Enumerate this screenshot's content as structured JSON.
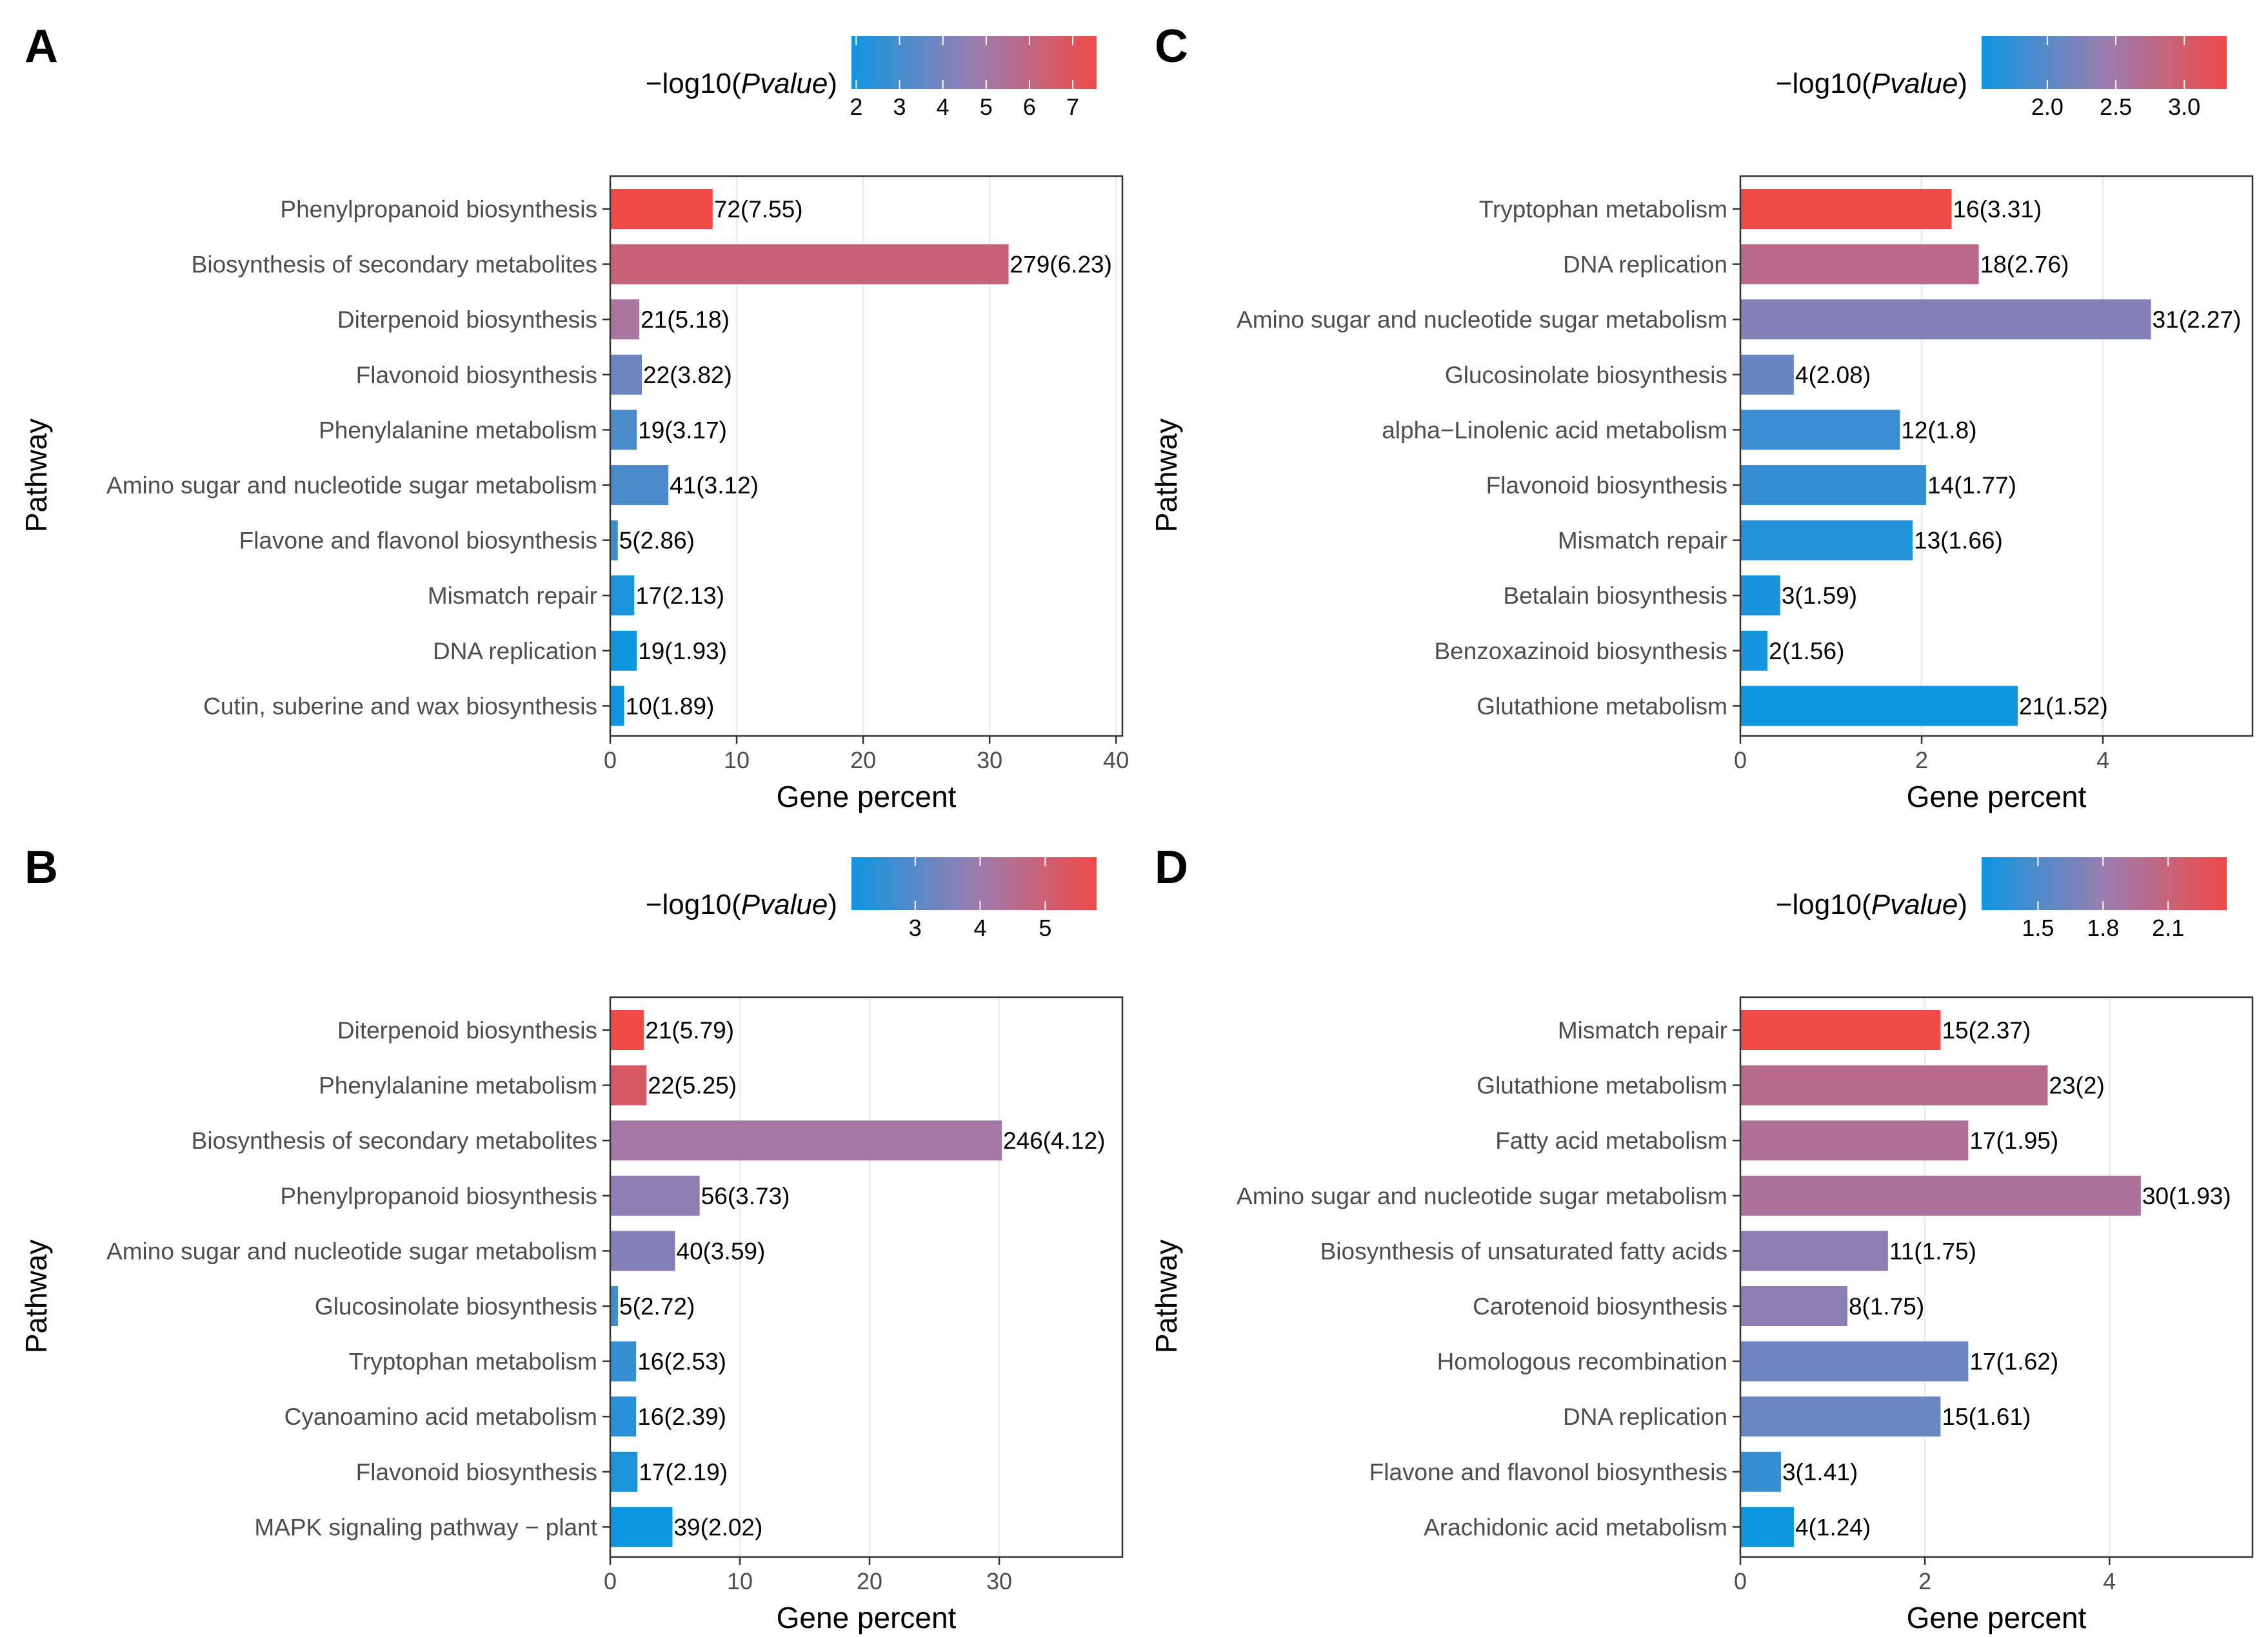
{
  "colors": {
    "low": "#0e96e0",
    "mid": "#9a7db0",
    "high": "#ef4a48"
  },
  "chart_data": [
    {
      "panel": "A",
      "type": "bar",
      "orientation": "horizontal",
      "ylabel": "Pathway",
      "xlabel": "Gene percent",
      "xlim": [
        0,
        40.5
      ],
      "xticks": [
        0,
        10,
        20,
        30,
        40
      ],
      "colorbar": {
        "title_prefix": "−log10(",
        "title_italic": "Pvalue",
        "title_suffix": ")",
        "range": [
          1.89,
          7.55
        ],
        "ticks": [
          2,
          3,
          4,
          5,
          6,
          7
        ]
      },
      "categories": [
        "Phenylpropanoid biosynthesis",
        "Biosynthesis of secondary metabolites",
        "Diterpenoid biosynthesis",
        "Flavonoid biosynthesis",
        "Phenylalanine metabolism",
        "Amino sugar and nucleotide sugar metabolism",
        "Flavone and flavonol biosynthesis",
        "Mismatch repair",
        "DNA replication",
        "Cutin, suberine and wax biosynthesis"
      ],
      "values": [
        8.1,
        31.5,
        2.3,
        2.5,
        2.1,
        4.6,
        0.6,
        1.9,
        2.1,
        1.1
      ],
      "neglog10p": [
        7.55,
        6.23,
        5.18,
        3.82,
        3.17,
        3.12,
        2.86,
        2.13,
        1.93,
        1.89
      ],
      "labels": [
        "72(7.55)",
        "279(6.23)",
        "21(5.18)",
        "22(3.82)",
        "19(3.17)",
        "41(3.12)",
        "5(2.86)",
        "17(2.13)",
        "19(1.93)",
        "10(1.89)"
      ]
    },
    {
      "panel": "C",
      "type": "bar",
      "orientation": "horizontal",
      "ylabel": "Pathway",
      "xlabel": "Gene percent",
      "xlim": [
        0,
        5.65
      ],
      "xticks": [
        0,
        2,
        4
      ],
      "colorbar": {
        "title_prefix": "−log10(",
        "title_italic": "Pvalue",
        "title_suffix": ")",
        "range": [
          1.52,
          3.31
        ],
        "ticks": [
          "2.0",
          "2.5",
          "3.0"
        ]
      },
      "categories": [
        "Tryptophan metabolism",
        "DNA replication",
        "Amino sugar and nucleotide sugar metabolism",
        "Glucosinolate biosynthesis",
        "alpha−Linolenic acid metabolism",
        "Flavonoid biosynthesis",
        "Mismatch repair",
        "Betalain biosynthesis",
        "Benzoxazinoid biosynthesis",
        "Glutathione metabolism"
      ],
      "values": [
        2.33,
        2.63,
        4.53,
        0.59,
        1.76,
        2.05,
        1.9,
        0.44,
        0.3,
        3.06
      ],
      "neglog10p": [
        3.31,
        2.76,
        2.27,
        2.08,
        1.8,
        1.77,
        1.66,
        1.59,
        1.56,
        1.52
      ],
      "labels": [
        "16(3.31)",
        "18(2.76)",
        "31(2.27)",
        "4(2.08)",
        "12(1.8)",
        "14(1.77)",
        "13(1.66)",
        "3(1.59)",
        "2(1.56)",
        "21(1.52)"
      ]
    },
    {
      "panel": "B",
      "type": "bar",
      "orientation": "horizontal",
      "ylabel": "Pathway",
      "xlabel": "Gene percent",
      "xlim": [
        0,
        39.5
      ],
      "xticks": [
        0,
        10,
        20,
        30
      ],
      "colorbar": {
        "title_prefix": "−log10(",
        "title_italic": "Pvalue",
        "title_suffix": ")",
        "range": [
          2.02,
          5.79
        ],
        "ticks": [
          3,
          4,
          5
        ]
      },
      "categories": [
        "Diterpenoid biosynthesis",
        "Phenylalanine metabolism",
        "Biosynthesis of secondary metabolites",
        "Phenylpropanoid biosynthesis",
        "Amino sugar and nucleotide sugar metabolism",
        "Glucosinolate biosynthesis",
        "Tryptophan metabolism",
        "Cyanoamino acid metabolism",
        "Flavonoid biosynthesis",
        "MAPK signaling pathway − plant"
      ],
      "values": [
        2.6,
        2.8,
        30.2,
        6.9,
        5.0,
        0.6,
        2.0,
        2.0,
        2.1,
        4.8
      ],
      "neglog10p": [
        5.79,
        5.25,
        4.12,
        3.73,
        3.59,
        2.72,
        2.53,
        2.39,
        2.19,
        2.02
      ],
      "labels": [
        "21(5.79)",
        "22(5.25)",
        "246(4.12)",
        "56(3.73)",
        "40(3.59)",
        "5(2.72)",
        "16(2.53)",
        "16(2.39)",
        "17(2.19)",
        "39(2.02)"
      ]
    },
    {
      "panel": "D",
      "type": "bar",
      "orientation": "horizontal",
      "ylabel": "Pathway",
      "xlabel": "Gene percent",
      "xlim": [
        0,
        5.55
      ],
      "xticks": [
        0,
        2,
        4
      ],
      "colorbar": {
        "title_prefix": "−log10(",
        "title_italic": "Pvalue",
        "title_suffix": ")",
        "range": [
          1.24,
          2.37
        ],
        "ticks": [
          "1.5",
          "1.8",
          "2.1"
        ]
      },
      "categories": [
        "Mismatch repair",
        "Glutathione metabolism",
        "Fatty acid metabolism",
        "Amino sugar and nucleotide sugar metabolism",
        "Biosynthesis of unsaturated fatty acids",
        "Carotenoid biosynthesis",
        "Homologous recombination",
        "DNA replication",
        "Flavone and flavonol biosynthesis",
        "Arachidonic acid metabolism"
      ],
      "values": [
        2.17,
        3.33,
        2.47,
        4.34,
        1.6,
        1.16,
        2.47,
        2.17,
        0.44,
        0.58
      ],
      "neglog10p": [
        2.37,
        2.0,
        1.95,
        1.93,
        1.75,
        1.75,
        1.62,
        1.61,
        1.41,
        1.24
      ],
      "labels": [
        "15(2.37)",
        "23(2)",
        "17(1.95)",
        "30(1.93)",
        "11(1.75)",
        "8(1.75)",
        "17(1.62)",
        "15(1.61)",
        "3(1.41)",
        "4(1.24)"
      ]
    }
  ]
}
